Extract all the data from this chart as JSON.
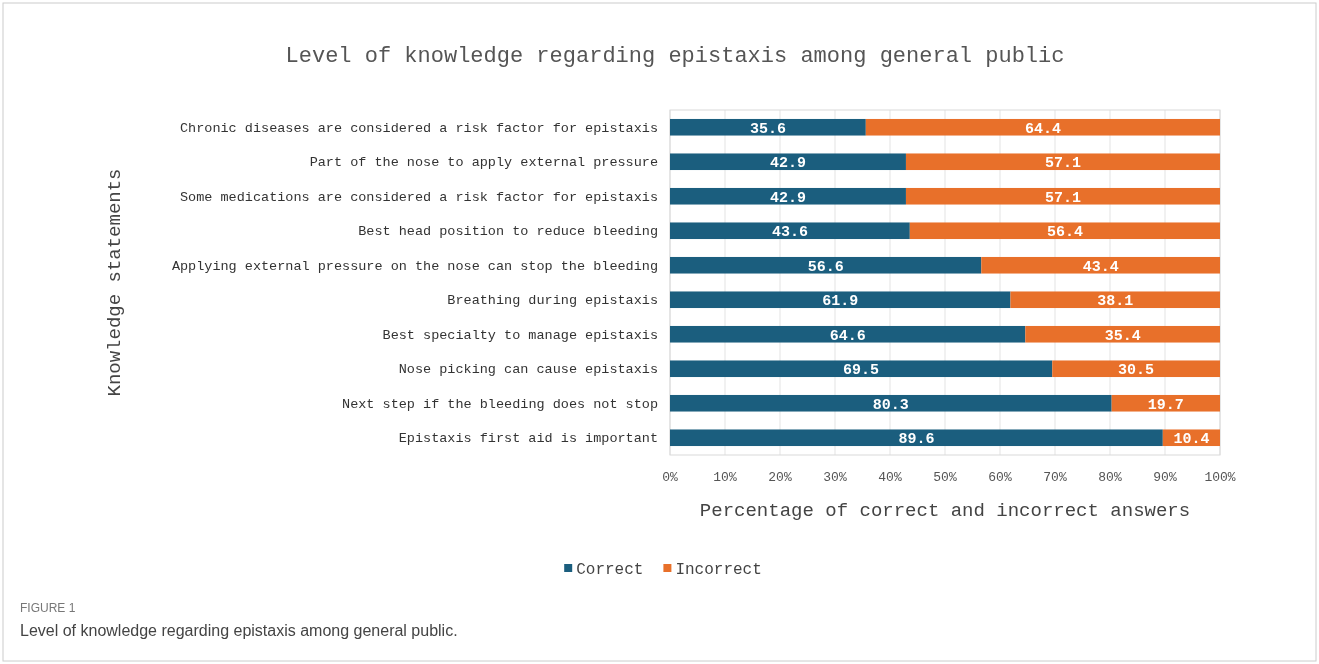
{
  "chart_data": {
    "type": "bar",
    "orientation": "horizontal",
    "stacked": true,
    "title": "Level of knowledge regarding epistaxis among general public",
    "xlabel": "Percentage of correct and incorrect answers",
    "ylabel": "Knowledge statements",
    "categories": [
      "Chronic diseases are considered a risk factor for epistaxis",
      "Part of the nose to apply external pressure",
      "Some medications are considered a risk factor for epistaxis",
      "Best head position to reduce bleeding",
      "Applying external pressure on the nose can stop the bleeding",
      "Breathing during epistaxis",
      "Best specialty to manage epistaxis",
      "Nose picking can cause epistaxis",
      "Next step if the bleeding does not stop",
      "Epistaxis first aid is important"
    ],
    "series": [
      {
        "name": "Correct",
        "color": "#1b5e7e",
        "values": [
          35.6,
          42.9,
          42.9,
          43.6,
          56.6,
          61.9,
          64.6,
          69.5,
          80.3,
          89.6
        ]
      },
      {
        "name": "Incorrect",
        "color": "#e8702a",
        "values": [
          64.4,
          57.1,
          57.1,
          56.4,
          43.4,
          38.1,
          35.4,
          30.5,
          19.7,
          10.4
        ]
      }
    ],
    "xlim": [
      0,
      100
    ],
    "xticks": [
      {
        "value": 0,
        "label": "0%"
      },
      {
        "value": 10,
        "label": "10%"
      },
      {
        "value": 20,
        "label": "20%"
      },
      {
        "value": 30,
        "label": "30%"
      },
      {
        "value": 40,
        "label": "40%"
      },
      {
        "value": 50,
        "label": "50%"
      },
      {
        "value": 60,
        "label": "60%"
      },
      {
        "value": 70,
        "label": "70%"
      },
      {
        "value": 80,
        "label": "80%"
      },
      {
        "value": 90,
        "label": "90%"
      },
      {
        "value": 100,
        "label": "100%"
      }
    ],
    "grid": "x",
    "legend": "bottom",
    "data_labels": true,
    "annotations": [
      "FIGURE 1",
      "Level of knowledge regarding epistaxis among general public."
    ]
  }
}
